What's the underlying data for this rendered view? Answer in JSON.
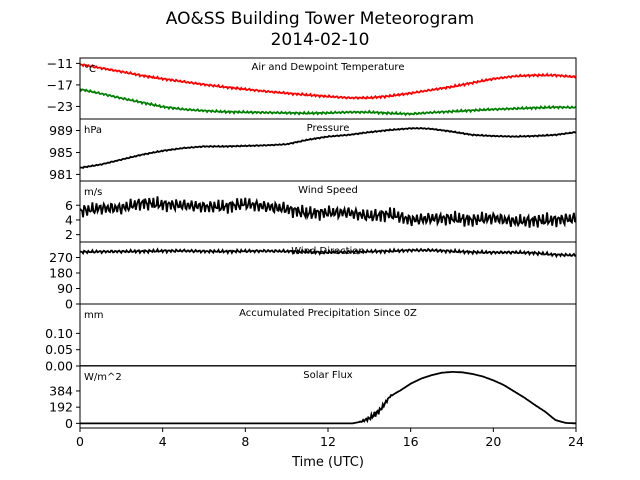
{
  "chart_data": {
    "type": "line",
    "title": "AO&SS Building Tower Meteorogram",
    "subtitle": "2014-02-10",
    "xlabel": "Time (UTC)",
    "xlim": [
      0,
      24
    ],
    "xticks": [
      "0",
      "4",
      "8",
      "12",
      "16",
      "20",
      "24"
    ],
    "panels": [
      {
        "name": "temperature",
        "title": "Air and Dewpoint Temperature",
        "unit": "°C",
        "ylim": [
          -26.5,
          -9.5
        ],
        "yticks": [
          -11,
          -17,
          -23
        ],
        "series": [
          {
            "color": "#ff0000",
            "x": [
              0,
              1,
              2,
              3,
              4,
              5,
              6,
              7,
              8,
              9,
              10,
              11,
              12,
              13,
              14,
              15,
              16,
              17,
              18,
              19,
              20,
              21,
              22,
              23,
              24
            ],
            "values": [
              -11.3,
              -12.3,
              -13.3,
              -14.4,
              -15.3,
              -16.1,
              -16.9,
              -17.6,
              -18.2,
              -18.8,
              -19.3,
              -19.8,
              -20.2,
              -20.6,
              -20.6,
              -20.1,
              -19.3,
              -18.4,
              -17.5,
              -16.4,
              -15.3,
              -14.6,
              -14.3,
              -14.3,
              -14.8
            ]
          },
          {
            "color": "#008000",
            "x": [
              0,
              1,
              2,
              3,
              4,
              5,
              6,
              7,
              8,
              9,
              10,
              11,
              12,
              13,
              14,
              15,
              16,
              17,
              18,
              19,
              20,
              21,
              22,
              23,
              24
            ],
            "values": [
              -18.2,
              -19.4,
              -20.7,
              -21.9,
              -23.1,
              -23.8,
              -24.2,
              -24.5,
              -24.6,
              -24.7,
              -24.8,
              -24.9,
              -24.8,
              -24.6,
              -24.6,
              -24.9,
              -25.1,
              -24.7,
              -24.4,
              -24.1,
              -23.8,
              -23.6,
              -23.4,
              -23.2,
              -23.3
            ]
          }
        ]
      },
      {
        "name": "pressure",
        "title": "Pressure",
        "unit": "hPa",
        "ylim": [
          979.8,
          991.1
        ],
        "yticks": [
          989,
          985,
          981
        ],
        "series": [
          {
            "color": "#000000",
            "x": [
              0,
              1,
              2,
              3,
              4,
              5,
              6,
              7,
              8,
              9,
              10,
              11,
              12,
              13,
              14,
              15,
              16,
              16.5,
              17,
              18,
              19,
              20,
              21,
              22,
              23,
              24
            ],
            "values": [
              982.2,
              982.8,
              983.7,
              984.6,
              985.3,
              985.8,
              986.1,
              986.1,
              986.2,
              986.3,
              986.5,
              987.3,
              987.9,
              988.2,
              988.7,
              989.1,
              989.4,
              989.4,
              989.3,
              988.8,
              988.2,
              988.0,
              987.9,
              988.0,
              988.2,
              988.7
            ]
          }
        ]
      },
      {
        "name": "wind-speed",
        "title": "Wind Speed",
        "unit": "m/s",
        "ylim": [
          1.0,
          9.3
        ],
        "yticks": [
          6,
          4,
          2
        ],
        "series": [
          {
            "color": "#000000",
            "x": [
              0,
              1,
              2,
              3,
              4,
              5,
              6,
              7,
              8,
              9,
              10,
              11,
              12,
              13,
              14,
              15,
              16,
              17,
              18,
              19,
              20,
              21,
              22,
              23,
              24
            ],
            "values": [
              5.2,
              5.6,
              5.6,
              6.3,
              6.1,
              6.0,
              5.8,
              5.8,
              6.2,
              5.8,
              5.5,
              4.9,
              5.0,
              5.0,
              4.5,
              4.8,
              4.0,
              4.2,
              4.2,
              4.0,
              4.3,
              3.8,
              3.9,
              4.0,
              4.2
            ]
          }
        ]
      },
      {
        "name": "wind-direction",
        "title": "Wind Direction",
        "unit": "",
        "ylim": [
          0,
          360
        ],
        "yticks": [
          270,
          180,
          90,
          0
        ],
        "series": [
          {
            "color": "#000000",
            "x": [
              0,
              1,
              2,
              3,
              4,
              5,
              6,
              7,
              8,
              9,
              10,
              11,
              12,
              13,
              14,
              15,
              16,
              17,
              18,
              19,
              20,
              21,
              22,
              23,
              24
            ],
            "values": [
              302,
              304,
              305,
              306,
              308,
              309,
              306,
              305,
              307,
              308,
              306,
              303,
              300,
              302,
              305,
              307,
              312,
              312,
              306,
              301,
              299,
              300,
              296,
              286,
              283
            ]
          }
        ]
      },
      {
        "name": "precipitation",
        "title": "Accumulated Precipitation Since 0Z",
        "unit": "mm",
        "ylim": [
          0,
          0.19
        ],
        "yticks": [
          0.1,
          0.05,
          0.0
        ],
        "ytick_labels": [
          "0.10",
          "0.05",
          "0.00"
        ],
        "series": [
          {
            "color": "#000000",
            "x": [
              0,
              24
            ],
            "values": [
              0,
              0
            ]
          }
        ]
      },
      {
        "name": "solar-flux",
        "title": "Solar Flux",
        "unit": "W/m^2",
        "ylim": [
          -55,
          680
        ],
        "yticks": [
          384,
          192,
          0
        ],
        "series": [
          {
            "color": "#000000",
            "x": [
              0,
              12,
              13.2,
              13.6,
              14,
              14.5,
              15,
              15.5,
              16,
              16.5,
              17,
              17.5,
              18,
              18.5,
              19,
              19.5,
              20,
              20.5,
              21,
              21.5,
              22,
              22.5,
              23,
              23.5,
              24
            ],
            "values": [
              0,
              0,
              0,
              20,
              60,
              150,
              320,
              390,
              470,
              530,
              570,
              600,
              610,
              605,
              585,
              555,
              510,
              455,
              380,
              305,
              220,
              140,
              40,
              5,
              0
            ]
          }
        ]
      }
    ]
  }
}
